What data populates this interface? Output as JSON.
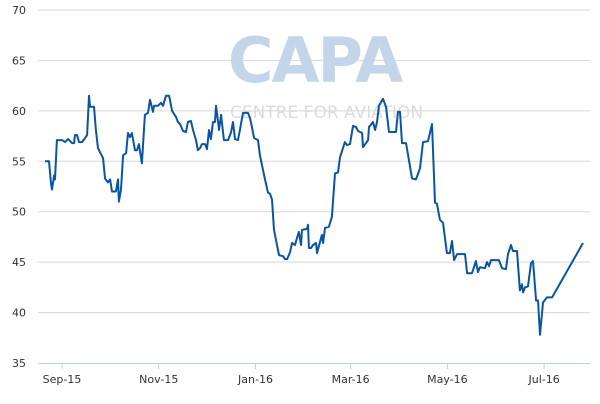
{
  "watermark": {
    "logo": "CAPA",
    "subtitle": "CENTRE FOR AVIATION"
  },
  "colors": {
    "line": "#0b55a0",
    "grid": "#d8d8d8",
    "axis": "#c0d0e0"
  },
  "chart_data": {
    "type": "line",
    "title": "",
    "xlabel": "",
    "ylabel": "",
    "x_units": "days since 1 Sep 2015",
    "xlim": [
      -15,
      340
    ],
    "ylim": [
      35,
      70
    ],
    "yticks": [
      35,
      40,
      45,
      50,
      55,
      60,
      65,
      70
    ],
    "xticks": [
      {
        "label": "Sep-15",
        "x": 0
      },
      {
        "label": "Nov-15",
        "x": 61
      },
      {
        "label": "Jan-16",
        "x": 122
      },
      {
        "label": "Mar-16",
        "x": 182
      },
      {
        "label": "May-16",
        "x": 243
      },
      {
        "label": "Jul-16",
        "x": 304
      }
    ],
    "grid": true,
    "series": [
      {
        "name": "price",
        "points": [
          [
            -10.7,
            55.0
          ],
          [
            -8.2,
            55.0
          ],
          [
            -6.9,
            52.7
          ],
          [
            -6.3,
            52.2
          ],
          [
            -5.0,
            53.6
          ],
          [
            -4.4,
            53.2
          ],
          [
            -3.2,
            57.1
          ],
          [
            0,
            57.1
          ],
          [
            1.9,
            56.9
          ],
          [
            3.8,
            57.2
          ],
          [
            6.3,
            56.8
          ],
          [
            7.6,
            56.8
          ],
          [
            8.2,
            57.6
          ],
          [
            9.5,
            57.6
          ],
          [
            10.7,
            56.9
          ],
          [
            12.6,
            56.9
          ],
          [
            14.5,
            57.3
          ],
          [
            15.8,
            57.6
          ],
          [
            17.0,
            61.5
          ],
          [
            17.7,
            60.4
          ],
          [
            20.2,
            60.4
          ],
          [
            21.4,
            58.1
          ],
          [
            22.7,
            56.3
          ],
          [
            25.9,
            55.3
          ],
          [
            27.1,
            53.3
          ],
          [
            29.0,
            52.9
          ],
          [
            30.3,
            53.2
          ],
          [
            31.5,
            52.0
          ],
          [
            34.0,
            52.0
          ],
          [
            35.3,
            53.2
          ],
          [
            35.9,
            51.0
          ],
          [
            37.2,
            52.2
          ],
          [
            38.5,
            55.6
          ],
          [
            40.4,
            55.8
          ],
          [
            41.6,
            57.8
          ],
          [
            42.9,
            57.4
          ],
          [
            44.1,
            57.8
          ],
          [
            46.0,
            56.1
          ],
          [
            47.3,
            56.1
          ],
          [
            48.5,
            56.7
          ],
          [
            50.4,
            54.8
          ],
          [
            52.3,
            59.6
          ],
          [
            54.2,
            59.8
          ],
          [
            55.5,
            61.1
          ],
          [
            57.4,
            59.9
          ],
          [
            58.0,
            60.5
          ],
          [
            60.5,
            60.5
          ],
          [
            62.4,
            60.8
          ],
          [
            63.7,
            60.5
          ],
          [
            65.6,
            61.5
          ],
          [
            67.5,
            61.5
          ],
          [
            69.4,
            60.0
          ],
          [
            71.9,
            59.4
          ],
          [
            73.1,
            58.9
          ],
          [
            74.4,
            58.7
          ],
          [
            76.3,
            58.0
          ],
          [
            78.2,
            57.9
          ],
          [
            79.4,
            58.9
          ],
          [
            81.3,
            59.0
          ],
          [
            82.6,
            58.1
          ],
          [
            84.5,
            57.1
          ],
          [
            85.7,
            56.1
          ],
          [
            87.0,
            56.3
          ],
          [
            88.3,
            56.7
          ],
          [
            90.2,
            56.7
          ],
          [
            91.4,
            56.2
          ],
          [
            92.7,
            58.1
          ],
          [
            93.9,
            57.2
          ],
          [
            95.2,
            58.9
          ],
          [
            96.5,
            58.9
          ],
          [
            97.1,
            60.5
          ],
          [
            98.4,
            58.9
          ],
          [
            99.0,
            58.1
          ],
          [
            100.3,
            59.6
          ],
          [
            102.1,
            57.1
          ],
          [
            104.7,
            57.1
          ],
          [
            106.6,
            57.9
          ],
          [
            107.8,
            58.9
          ],
          [
            109.1,
            57.2
          ],
          [
            111.0,
            57.1
          ],
          [
            112.2,
            58.1
          ],
          [
            114.1,
            59.8
          ],
          [
            117.3,
            59.8
          ],
          [
            118.5,
            59.3
          ],
          [
            119.2,
            58.8
          ],
          [
            121.1,
            57.3
          ],
          [
            123.6,
            57.1
          ],
          [
            124.8,
            55.6
          ],
          [
            128.0,
            53.2
          ],
          [
            129.9,
            51.9
          ],
          [
            131.1,
            51.8
          ],
          [
            132.4,
            51.2
          ],
          [
            133.7,
            48.2
          ],
          [
            136.8,
            45.7
          ],
          [
            139.3,
            45.6
          ],
          [
            140.6,
            45.3
          ],
          [
            141.9,
            45.3
          ],
          [
            143.8,
            46.0
          ],
          [
            145.0,
            46.9
          ],
          [
            146.9,
            46.7
          ],
          [
            148.2,
            47.4
          ],
          [
            149.4,
            48.0
          ],
          [
            150.7,
            46.7
          ],
          [
            151.3,
            48.2
          ],
          [
            154.5,
            48.3
          ],
          [
            155.1,
            48.7
          ],
          [
            155.7,
            46.4
          ],
          [
            157.0,
            46.4
          ],
          [
            158.3,
            46.7
          ],
          [
            160.2,
            46.9
          ],
          [
            160.8,
            45.9
          ],
          [
            163.9,
            47.7
          ],
          [
            164.6,
            46.9
          ],
          [
            165.8,
            48.4
          ],
          [
            168.3,
            48.5
          ],
          [
            170.2,
            49.5
          ],
          [
            172.1,
            53.8
          ],
          [
            174.0,
            53.9
          ],
          [
            175.3,
            55.4
          ],
          [
            178.4,
            56.9
          ],
          [
            179.7,
            56.6
          ],
          [
            181.6,
            56.7
          ],
          [
            183.5,
            58.5
          ],
          [
            185.4,
            58.4
          ],
          [
            186.7,
            58.0
          ],
          [
            189.2,
            57.8
          ],
          [
            189.8,
            56.4
          ],
          [
            193.0,
            57.1
          ],
          [
            193.6,
            58.4
          ],
          [
            196.1,
            58.9
          ],
          [
            197.4,
            58.1
          ],
          [
            198.6,
            58.9
          ],
          [
            199.9,
            60.5
          ],
          [
            202.4,
            61.2
          ],
          [
            204.3,
            60.4
          ],
          [
            206.2,
            57.9
          ],
          [
            210.6,
            57.9
          ],
          [
            211.8,
            59.9
          ],
          [
            213.1,
            59.9
          ],
          [
            214.4,
            56.8
          ],
          [
            216.9,
            56.8
          ],
          [
            218.2,
            55.6
          ],
          [
            220.7,
            53.3
          ],
          [
            223.2,
            53.2
          ],
          [
            225.7,
            54.3
          ],
          [
            227.6,
            56.9
          ],
          [
            230.8,
            57.0
          ],
          [
            233.3,
            58.7
          ],
          [
            235.2,
            50.9
          ],
          [
            236.4,
            50.8
          ],
          [
            238.3,
            49.2
          ],
          [
            240.2,
            48.9
          ],
          [
            242.7,
            45.9
          ],
          [
            244.6,
            45.9
          ],
          [
            245.9,
            47.1
          ],
          [
            247.2,
            45.2
          ],
          [
            249.1,
            45.8
          ],
          [
            254.1,
            45.8
          ],
          [
            255.4,
            43.9
          ],
          [
            258.5,
            43.9
          ],
          [
            261.0,
            45.1
          ],
          [
            262.3,
            44.0
          ],
          [
            263.5,
            44.5
          ],
          [
            266.7,
            44.4
          ],
          [
            268.0,
            45.0
          ],
          [
            269.2,
            44.6
          ],
          [
            270.5,
            45.2
          ],
          [
            275.5,
            45.2
          ],
          [
            277.4,
            44.4
          ],
          [
            279.9,
            44.3
          ],
          [
            281.2,
            45.8
          ],
          [
            283.1,
            46.7
          ],
          [
            284.3,
            46.1
          ],
          [
            286.9,
            46.1
          ],
          [
            288.7,
            42.2
          ],
          [
            290.0,
            42.8
          ],
          [
            290.7,
            42.0
          ],
          [
            291.9,
            42.5
          ],
          [
            293.8,
            42.6
          ],
          [
            295.7,
            44.9
          ],
          [
            297.0,
            45.1
          ],
          [
            298.9,
            41.2
          ],
          [
            300.1,
            41.2
          ],
          [
            301.4,
            37.8
          ],
          [
            303.3,
            41.0
          ],
          [
            305.8,
            41.5
          ],
          [
            309.0,
            41.5
          ],
          [
            328.5,
            46.9
          ]
        ]
      }
    ]
  }
}
